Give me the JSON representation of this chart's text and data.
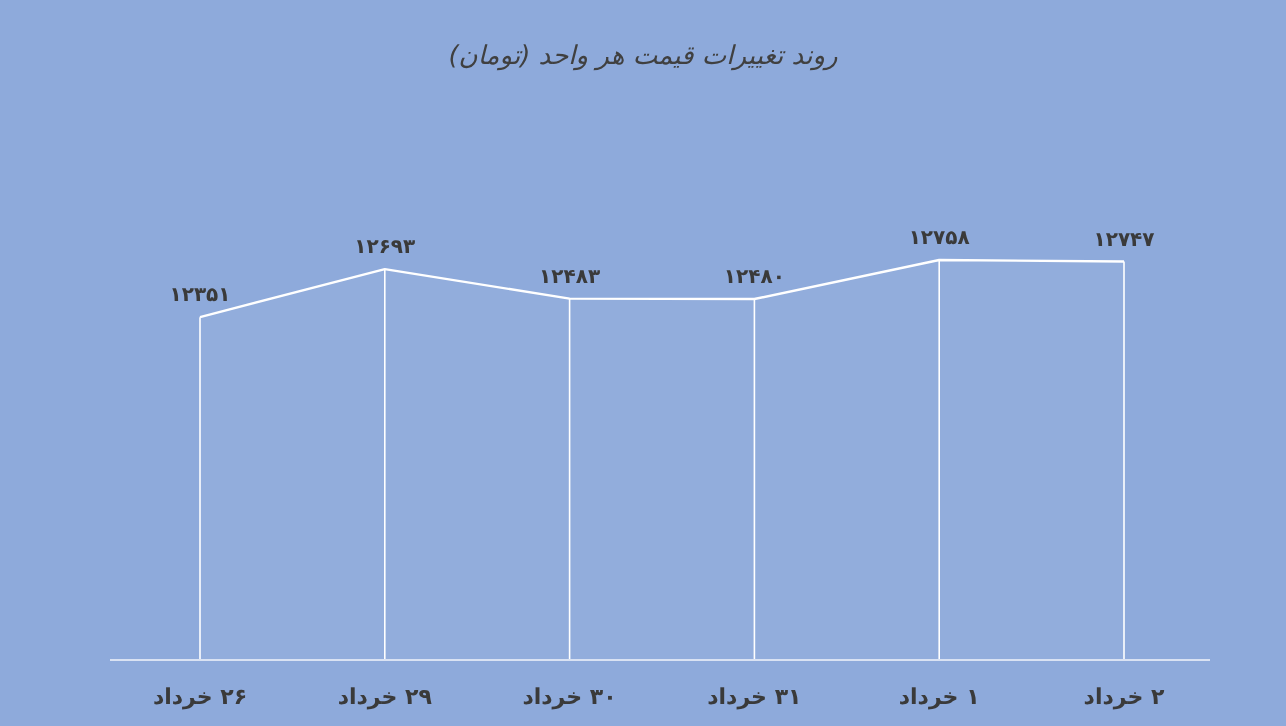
{
  "chart_data": {
    "type": "area",
    "title": "روند تغییرات قیمت هر واحد (تومان)",
    "categories": [
      "۲۶ خرداد",
      "۲۹ خرداد",
      "۳۰ خرداد",
      "۳۱ خرداد",
      "۱ خرداد",
      "۲ خرداد"
    ],
    "values": [
      12351,
      12693,
      12483,
      12480,
      12758,
      12747
    ],
    "value_labels": [
      "۱۲۳۵۱",
      "۱۲۶۹۳",
      "۱۲۴۸۳",
      "۱۲۴۸۰",
      "۱۲۷۵۸",
      "۱۲۷۴۷"
    ],
    "color": "#ffffff"
  }
}
